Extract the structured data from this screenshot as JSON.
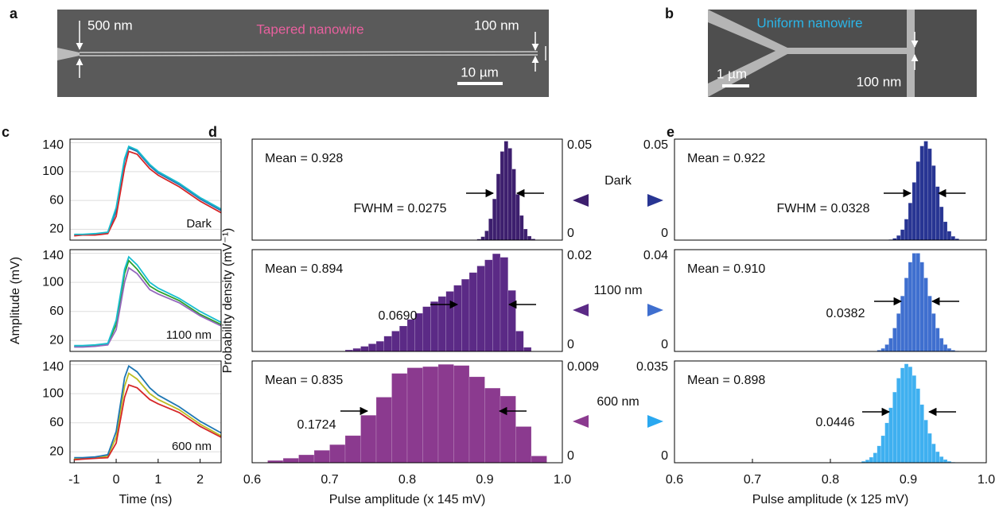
{
  "sem_images": [
    {
      "panel_label": "a",
      "title": "Tapered nanowire",
      "width_labels": [
        "500 nm",
        "100 nm"
      ],
      "scale_bar": "10 µm"
    },
    {
      "panel_label": "b",
      "title": "Uniform nanowire",
      "width_labels": [
        "100 nm"
      ],
      "scale_bar": "1 µm"
    }
  ],
  "arrow_labels": [
    "Dark",
    "1100 nm",
    "600 nm"
  ],
  "chart_data": [
    {
      "type": "line",
      "panel_label": "c",
      "y_label": "Amplitude (mV)",
      "annotation": "Dark",
      "x": [
        -1,
        -0.8,
        -0.5,
        -0.2,
        0,
        0.2,
        0.3,
        0.5,
        0.8,
        1,
        1.5,
        2,
        2.5
      ],
      "xlim": [
        -1.1,
        2.5
      ],
      "ylim": [
        5,
        145
      ],
      "yticks": [
        20,
        60,
        100,
        140
      ],
      "grid": true,
      "series": [
        {
          "color": "#1f77b4",
          "values": [
            12,
            12,
            13,
            15,
            45,
            115,
            133,
            128,
            108,
            98,
            82,
            62,
            46
          ]
        },
        {
          "color": "#d62728",
          "values": [
            11,
            12,
            12,
            14,
            38,
            105,
            128,
            124,
            104,
            95,
            79,
            59,
            43
          ]
        },
        {
          "color": "#17becf",
          "values": [
            13,
            13,
            14,
            16,
            50,
            118,
            135,
            130,
            110,
            100,
            84,
            64,
            48
          ]
        }
      ]
    },
    {
      "type": "line",
      "annotation": "1100 nm",
      "x": [
        -1,
        -0.8,
        -0.5,
        -0.2,
        0,
        0.2,
        0.3,
        0.5,
        0.8,
        1,
        1.5,
        2,
        2.5
      ],
      "xlim": [
        -1.1,
        2.5
      ],
      "ylim": [
        5,
        145
      ],
      "yticks": [
        20,
        60,
        100,
        140
      ],
      "grid": true,
      "series": [
        {
          "color": "#2ca02c",
          "values": [
            12,
            12,
            13,
            15,
            42,
            112,
            130,
            118,
            95,
            88,
            75,
            56,
            42
          ]
        },
        {
          "color": "#9467bd",
          "values": [
            11,
            11,
            12,
            14,
            35,
            100,
            120,
            112,
            90,
            84,
            72,
            54,
            40
          ]
        },
        {
          "color": "#17becf",
          "values": [
            13,
            13,
            14,
            16,
            48,
            118,
            135,
            124,
            100,
            92,
            78,
            60,
            45
          ]
        }
      ]
    },
    {
      "type": "line",
      "annotation": "600 nm",
      "x_label": "Time (ns)",
      "x": [
        -1,
        -0.8,
        -0.5,
        -0.2,
        0,
        0.2,
        0.3,
        0.5,
        0.8,
        1,
        1.5,
        2,
        2.5
      ],
      "xlim": [
        -1.1,
        2.5
      ],
      "xticks": [
        -1,
        0,
        1,
        2
      ],
      "ylim": [
        5,
        145
      ],
      "yticks": [
        20,
        60,
        100,
        140
      ],
      "grid": true,
      "series": [
        {
          "color": "#bcbd22",
          "values": [
            10,
            11,
            12,
            14,
            40,
            110,
            128,
            120,
            100,
            92,
            78,
            58,
            42
          ]
        },
        {
          "color": "#d62728",
          "values": [
            9,
            10,
            11,
            12,
            32,
            95,
            112,
            108,
            92,
            86,
            74,
            55,
            40
          ]
        },
        {
          "color": "#1f77b4",
          "values": [
            12,
            12,
            13,
            16,
            48,
            122,
            138,
            130,
            108,
            98,
            82,
            62,
            46
          ]
        }
      ]
    },
    {
      "type": "histogram",
      "panel_label": "d",
      "y_label": "Probability density (mV⁻¹)",
      "mean_label": "Mean = 0.928",
      "fwhm_label": "FWHM = 0.0275",
      "color": "#3d1f6e",
      "y_axis_side": "right",
      "xlim": [
        0.6,
        1
      ],
      "ylim": [
        0,
        0.05
      ],
      "yticks": [
        0,
        0.05
      ],
      "bins": [
        0.89,
        0.895,
        0.9,
        0.905,
        0.91,
        0.915,
        0.92,
        0.925,
        0.93,
        0.935,
        0.94,
        0.945,
        0.95,
        0.955,
        0.96,
        0.965
      ],
      "values": [
        0.0005,
        0.0017,
        0.0046,
        0.0106,
        0.0204,
        0.0328,
        0.0439,
        0.049,
        0.0455,
        0.0352,
        0.0227,
        0.0122,
        0.0055,
        0.002,
        0.0006
      ]
    },
    {
      "type": "histogram",
      "mean_label": "Mean = 0.894",
      "fwhm_label": "0.0690",
      "color": "#5b2a86",
      "y_axis_side": "right",
      "xlim": [
        0.6,
        1
      ],
      "ylim": [
        0,
        0.02
      ],
      "yticks": [
        0,
        0.02
      ],
      "bins": [
        0.72,
        0.73,
        0.74,
        0.75,
        0.76,
        0.77,
        0.78,
        0.79,
        0.8,
        0.81,
        0.82,
        0.83,
        0.84,
        0.85,
        0.86,
        0.87,
        0.88,
        0.89,
        0.9,
        0.91,
        0.92,
        0.93,
        0.94,
        0.95,
        0.96
      ],
      "values": [
        0.0003,
        0.0006,
        0.001,
        0.0015,
        0.002,
        0.003,
        0.004,
        0.005,
        0.0063,
        0.0075,
        0.0088,
        0.0098,
        0.0108,
        0.0118,
        0.013,
        0.0142,
        0.0155,
        0.0168,
        0.018,
        0.0192,
        0.0185,
        0.012,
        0.004,
        0.0008
      ]
    },
    {
      "type": "histogram",
      "mean_label": "Mean = 0.835",
      "fwhm_label": "0.1724",
      "x_label": "Pulse amplitude (x 145 mV)",
      "color": "#8b3a8f",
      "y_axis_side": "right",
      "xlim": [
        0.6,
        1
      ],
      "xticks": [
        0.6,
        0.7,
        0.8,
        0.9,
        {
          "value": 1,
          "label": "1.0"
        }
      ],
      "ylim": [
        0,
        0.009
      ],
      "yticks": [
        0,
        0.009
      ],
      "bins": [
        0.62,
        0.64,
        0.66,
        0.68,
        0.7,
        0.72,
        0.74,
        0.76,
        0.78,
        0.8,
        0.82,
        0.84,
        0.86,
        0.88,
        0.9,
        0.92,
        0.94,
        0.96,
        0.98
      ],
      "values": [
        0.0002,
        0.0004,
        0.0007,
        0.0011,
        0.0016,
        0.0024,
        0.0042,
        0.0058,
        0.0079,
        0.0084,
        0.0085,
        0.0087,
        0.0086,
        0.0076,
        0.0066,
        0.0059,
        0.0032,
        0.0006
      ]
    },
    {
      "type": "histogram",
      "panel_label": "e",
      "mean_label": "Mean = 0.922",
      "fwhm_label": "FWHM = 0.0328",
      "color": "#283593",
      "y_axis_side": "left",
      "xlim": [
        0.6,
        1
      ],
      "ylim": [
        0,
        0.05
      ],
      "yticks": [
        0,
        0.05
      ],
      "bins": [
        0.875,
        0.88,
        0.885,
        0.89,
        0.895,
        0.9,
        0.905,
        0.91,
        0.915,
        0.92,
        0.925,
        0.93,
        0.935,
        0.94,
        0.945,
        0.95,
        0.955,
        0.96,
        0.965,
        0.97
      ],
      "values": [
        0.0003,
        0.0009,
        0.0023,
        0.0052,
        0.0104,
        0.0184,
        0.0286,
        0.0389,
        0.0466,
        0.049,
        0.0453,
        0.0369,
        0.0265,
        0.0165,
        0.0091,
        0.0044,
        0.0019,
        0.0007,
        0.0002
      ]
    },
    {
      "type": "histogram",
      "mean_label": "Mean = 0.910",
      "fwhm_label": "0.0382",
      "color": "#3f6fcf",
      "y_axis_side": "left",
      "xlim": [
        0.6,
        1
      ],
      "ylim": [
        0,
        0.04
      ],
      "yticks": [
        0,
        0.04
      ],
      "bins": [
        0.86,
        0.865,
        0.87,
        0.875,
        0.88,
        0.885,
        0.89,
        0.895,
        0.9,
        0.905,
        0.91,
        0.915,
        0.92,
        0.925,
        0.93,
        0.935,
        0.94,
        0.945,
        0.95,
        0.955,
        0.96,
        0.965
      ],
      "values": [
        0.0005,
        0.0012,
        0.0027,
        0.0052,
        0.0092,
        0.0149,
        0.0218,
        0.0289,
        0.0351,
        0.0386,
        0.0386,
        0.0351,
        0.0289,
        0.0218,
        0.0149,
        0.0092,
        0.0052,
        0.0027,
        0.0012,
        0.0005,
        0.0002
      ]
    },
    {
      "type": "histogram",
      "mean_label": "Mean = 0.898",
      "fwhm_label": "0.0446",
      "x_label": "Pulse amplitude (x 125 mV)",
      "color": "#3fb0f0",
      "y_axis_side": "left",
      "xlim": [
        0.6,
        1
      ],
      "xticks": [
        0.6,
        0.7,
        0.8,
        0.9,
        {
          "value": 1,
          "label": "1.0"
        }
      ],
      "ylim": [
        0,
        0.035
      ],
      "yticks": [
        0,
        0.035
      ],
      "bins": [
        0.84,
        0.845,
        0.85,
        0.855,
        0.86,
        0.865,
        0.87,
        0.875,
        0.88,
        0.885,
        0.89,
        0.895,
        0.9,
        0.905,
        0.91,
        0.915,
        0.92,
        0.925,
        0.93,
        0.935,
        0.94,
        0.945,
        0.95,
        0.955,
        0.96
      ],
      "values": [
        0.0005,
        0.001,
        0.0019,
        0.0034,
        0.0058,
        0.0093,
        0.0137,
        0.0189,
        0.0243,
        0.0291,
        0.0326,
        0.034,
        0.033,
        0.03,
        0.0255,
        0.02,
        0.0147,
        0.0101,
        0.0065,
        0.0038,
        0.0021,
        0.0011,
        0.0005,
        0.0002
      ]
    }
  ]
}
